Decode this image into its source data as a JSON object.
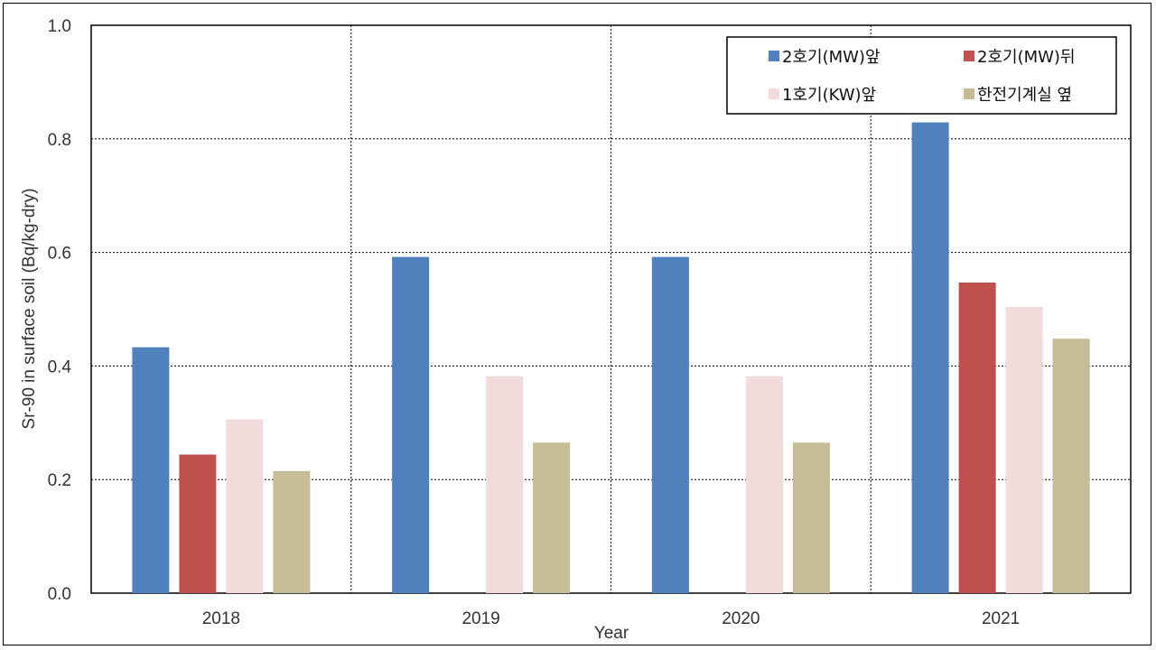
{
  "chart_data": {
    "type": "bar",
    "categories": [
      "2018",
      "2019",
      "2020",
      "2021"
    ],
    "series": [
      {
        "name": "2호기(MW)앞",
        "color": "#4F81BD",
        "values": [
          0.433,
          0.592,
          0.592,
          0.829
        ]
      },
      {
        "name": "2호기(MW)뒤",
        "color": "#C0504D",
        "values": [
          0.244,
          null,
          null,
          0.547
        ]
      },
      {
        "name": "1호기(KW)앞",
        "color": "#F2DCDB",
        "values": [
          0.306,
          0.382,
          0.382,
          0.504
        ]
      },
      {
        "name": "한전기계실 옆",
        "color": "#C4BD97",
        "values": [
          0.215,
          0.265,
          0.265,
          0.448
        ]
      }
    ],
    "title": "",
    "xlabel": "Year",
    "ylabel": "Sr-90 in surface soil (Bq/kg-dry)",
    "ylim": [
      0,
      1.0
    ],
    "yticks": [
      "0.0",
      "0.2",
      "0.4",
      "0.6",
      "0.8",
      "1.0"
    ],
    "grid": true,
    "legend_position": "top-right"
  }
}
